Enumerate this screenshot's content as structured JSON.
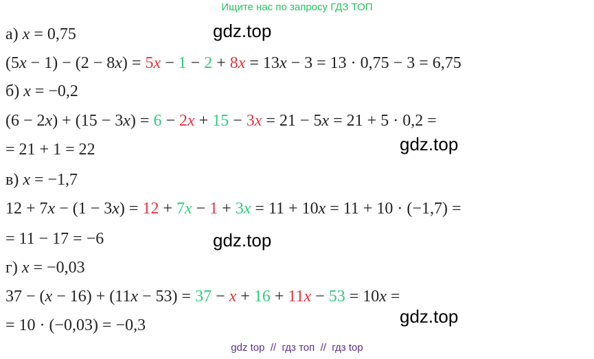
{
  "header": {
    "text": "Ищите нас по запросу ГДЗ ТОП"
  },
  "lines": [
    {
      "segments": [
        {
          "text": "а) x = 0,75",
          "color": "#222222"
        }
      ]
    },
    {
      "segments": [
        {
          "text": "(5x − 1) − (2 − 8x) = ",
          "color": "#222222"
        },
        {
          "text": "5x",
          "color": "#e8323c"
        },
        {
          "text": " − ",
          "color": "#222222"
        },
        {
          "text": "1",
          "color": "#2ecc7a"
        },
        {
          "text": " − ",
          "color": "#222222"
        },
        {
          "text": "2",
          "color": "#2ecc7a"
        },
        {
          "text": " + ",
          "color": "#222222"
        },
        {
          "text": "8x",
          "color": "#e8323c"
        },
        {
          "text": " = 13x − 3 = 13 · 0,75 − 3 = 6,75",
          "color": "#222222"
        }
      ]
    },
    {
      "segments": [
        {
          "text": "б) x = −0,2",
          "color": "#222222"
        }
      ]
    },
    {
      "segments": [
        {
          "text": "(6 − 2x) + (15 − 3x) = ",
          "color": "#222222"
        },
        {
          "text": "6",
          "color": "#2ecc7a"
        },
        {
          "text": " − ",
          "color": "#222222"
        },
        {
          "text": "2x",
          "color": "#e8323c"
        },
        {
          "text": " + ",
          "color": "#222222"
        },
        {
          "text": "15",
          "color": "#2ecc7a"
        },
        {
          "text": " − ",
          "color": "#222222"
        },
        {
          "text": "3x",
          "color": "#e8323c"
        },
        {
          "text": " = 21 − 5x = 21 + 5 · 0,2 =",
          "color": "#222222"
        }
      ]
    },
    {
      "segments": [
        {
          "text": "= 21 + 1 = 22",
          "color": "#222222"
        }
      ]
    },
    {
      "segments": [
        {
          "text": "в) x = −1,7",
          "color": "#222222"
        }
      ]
    },
    {
      "segments": [
        {
          "text": "12 + 7x − (1 − 3x) = ",
          "color": "#222222"
        },
        {
          "text": "12",
          "color": "#e8323c"
        },
        {
          "text": " + ",
          "color": "#222222"
        },
        {
          "text": "7x",
          "color": "#2ecc7a"
        },
        {
          "text": " − ",
          "color": "#222222"
        },
        {
          "text": "1",
          "color": "#e8323c"
        },
        {
          "text": " + ",
          "color": "#222222"
        },
        {
          "text": "3x",
          "color": "#2ecc7a"
        },
        {
          "text": " = 11 + 10x = 11 + 10 · (−1,7) =",
          "color": "#222222"
        }
      ]
    },
    {
      "segments": [
        {
          "text": "= 11 − 17 = −6",
          "color": "#222222"
        }
      ]
    },
    {
      "segments": [
        {
          "text": "г) x = −0,03",
          "color": "#222222"
        }
      ]
    },
    {
      "segments": [
        {
          "text": "37 − (x − 16) + (11x − 53) = ",
          "color": "#222222"
        },
        {
          "text": "37",
          "color": "#2ecc7a"
        },
        {
          "text": " − ",
          "color": "#222222"
        },
        {
          "text": "x",
          "color": "#e8323c"
        },
        {
          "text": " + ",
          "color": "#222222"
        },
        {
          "text": "16",
          "color": "#2ecc7a"
        },
        {
          "text": " + ",
          "color": "#222222"
        },
        {
          "text": "11x",
          "color": "#e8323c"
        },
        {
          "text": " − ",
          "color": "#222222"
        },
        {
          "text": "53",
          "color": "#2ecc7a"
        },
        {
          "text": " = 10x =",
          "color": "#222222"
        }
      ]
    },
    {
      "segments": [
        {
          "text": "= 10 · (−0,03) = −0,3",
          "color": "#222222"
        }
      ]
    }
  ],
  "watermarks": [
    "gdz.top",
    "gdz.top",
    "gdz.top",
    "gdz.top"
  ],
  "footer": {
    "text": "gdz top  //  гдз топ  //  гдз top"
  }
}
